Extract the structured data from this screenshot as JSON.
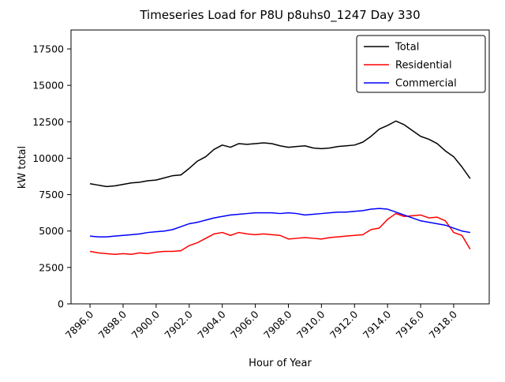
{
  "window": {
    "background_color": "#ffffff"
  },
  "chart_data": {
    "type": "line",
    "title": "Timeseries Load for P8U p8uhs0_1247  Day 330",
    "xlabel": "Hour of Year",
    "ylabel": "kW total",
    "xlim": [
      7894.85,
      7920.15
    ],
    "ylim": [
      0,
      18800
    ],
    "grid": false,
    "legend_position": "upper right",
    "xticks": [
      7896,
      7898,
      7900,
      7902,
      7904,
      7906,
      7908,
      7910,
      7912,
      7914,
      7916,
      7918
    ],
    "xtick_labels": [
      "7896.0",
      "7898.0",
      "7900.0",
      "7902.0",
      "7904.0",
      "7906.0",
      "7908.0",
      "7910.0",
      "7912.0",
      "7914.0",
      "7916.0",
      "7918.0"
    ],
    "yticks": [
      0,
      2500,
      5000,
      7500,
      10000,
      12500,
      15000,
      17500
    ],
    "ytick_labels": [
      "0",
      "2500",
      "5000",
      "7500",
      "10000",
      "12500",
      "15000",
      "17500"
    ],
    "x": [
      7896.0,
      7896.5,
      7897.0,
      7897.5,
      7898.0,
      7898.5,
      7899.0,
      7899.5,
      7900.0,
      7900.5,
      7901.0,
      7901.5,
      7902.0,
      7902.5,
      7903.0,
      7903.5,
      7904.0,
      7904.5,
      7905.0,
      7905.5,
      7906.0,
      7906.5,
      7907.0,
      7907.5,
      7908.0,
      7908.5,
      7909.0,
      7909.5,
      7910.0,
      7910.5,
      7911.0,
      7911.5,
      7912.0,
      7912.5,
      7913.0,
      7913.5,
      7914.0,
      7914.5,
      7915.0,
      7915.5,
      7916.0,
      7916.5,
      7917.0,
      7917.5,
      7918.0,
      7918.5,
      7919.0
    ],
    "series": [
      {
        "name": "Total",
        "color": "#000000",
        "values": [
          8250,
          8150,
          8050,
          8100,
          8200,
          8300,
          8350,
          8450,
          8500,
          8650,
          8800,
          8850,
          9300,
          9800,
          10100,
          10600,
          10900,
          10750,
          11000,
          10950,
          11000,
          11050,
          11000,
          10850,
          10750,
          10800,
          10850,
          10700,
          10650,
          10700,
          10800,
          10850,
          10900,
          11100,
          11500,
          12000,
          12250,
          12550,
          12300,
          11900,
          11500,
          11300,
          11000,
          10500,
          10100,
          9400,
          8600
        ]
      },
      {
        "name": "Residential",
        "color": "#ff0000",
        "values": [
          3600,
          3500,
          3450,
          3400,
          3450,
          3400,
          3500,
          3450,
          3550,
          3600,
          3600,
          3650,
          4000,
          4200,
          4500,
          4800,
          4900,
          4700,
          4900,
          4800,
          4750,
          4800,
          4750,
          4700,
          4450,
          4500,
          4550,
          4500,
          4450,
          4550,
          4600,
          4650,
          4700,
          4750,
          5100,
          5200,
          5800,
          6200,
          6000,
          6050,
          6100,
          5900,
          5950,
          5700,
          4900,
          4700,
          3750
        ]
      },
      {
        "name": "Commercial",
        "color": "#0000ff",
        "values": [
          4650,
          4600,
          4600,
          4650,
          4700,
          4750,
          4800,
          4900,
          4950,
          5000,
          5100,
          5300,
          5500,
          5600,
          5750,
          5900,
          6000,
          6100,
          6150,
          6200,
          6250,
          6250,
          6250,
          6200,
          6250,
          6200,
          6100,
          6150,
          6200,
          6250,
          6300,
          6300,
          6350,
          6400,
          6500,
          6550,
          6500,
          6300,
          6100,
          5900,
          5700,
          5600,
          5500,
          5400,
          5200,
          5000,
          4900
        ]
      }
    ]
  }
}
